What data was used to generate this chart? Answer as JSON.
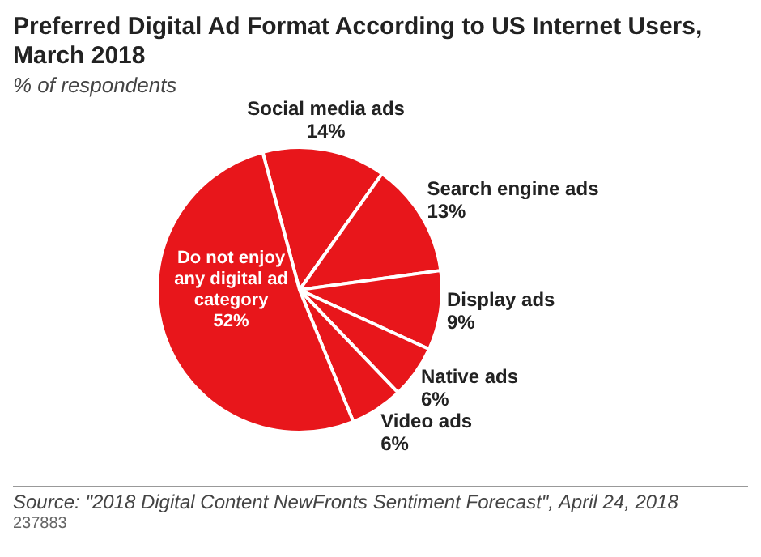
{
  "chart_data": {
    "type": "pie",
    "title": "Preferred Digital Ad Format According to US Internet Users, March 2018",
    "subtitle": "% of respondents",
    "categories": [
      "Social media ads",
      "Search engine ads",
      "Display ads",
      "Native ads",
      "Video ads",
      "Do not enjoy any digital ad category"
    ],
    "values": [
      14,
      13,
      9,
      6,
      6,
      52
    ],
    "colors": [
      "#e8161b",
      "#e8161b",
      "#e8161b",
      "#e8161b",
      "#e8161b",
      "#e8161b"
    ],
    "value_labels": [
      "14%",
      "13%",
      "9%",
      "6%",
      "6%",
      "52%"
    ],
    "legend": false,
    "annotations": [
      "Source: \"2018 Digital Content NewFronts Sentiment Forecast\", April 24, 2018",
      "237883"
    ]
  }
}
